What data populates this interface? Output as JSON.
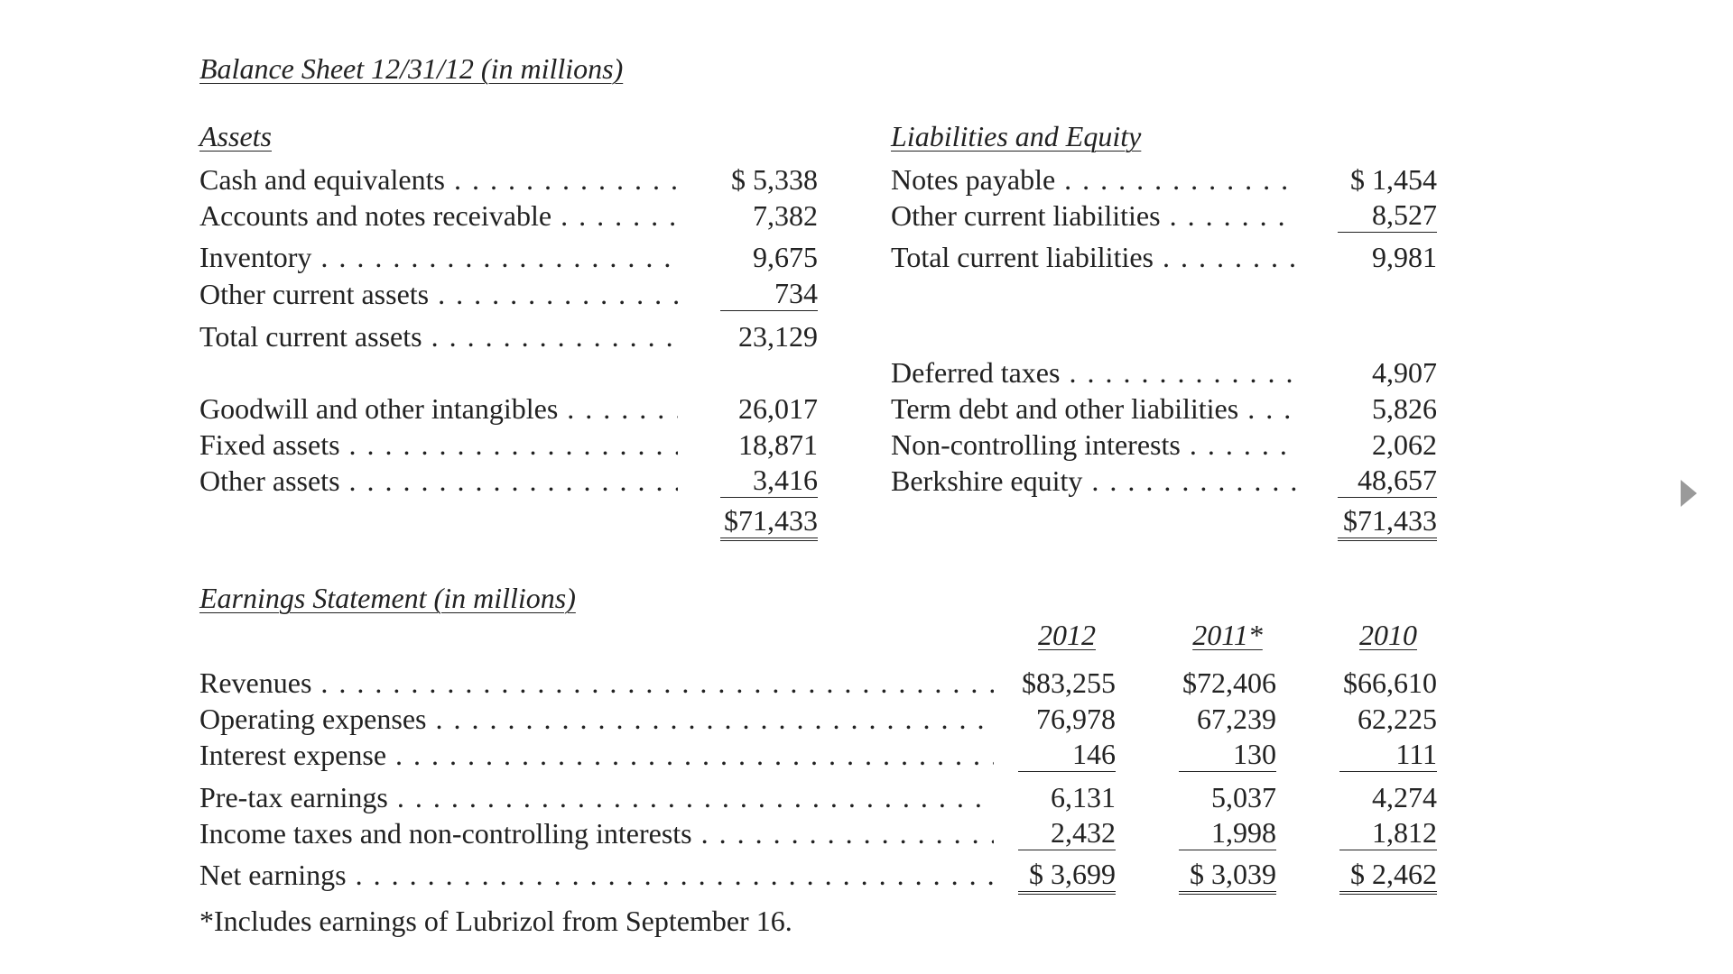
{
  "balance_sheet": {
    "title": "Balance Sheet 12/31/12 (in millions)",
    "assets_heading": "Assets",
    "assets": [
      {
        "label": "Cash and equivalents",
        "value": "$ 5,338"
      },
      {
        "label": "Accounts and notes receivable",
        "value": "7,382"
      },
      {
        "label": "Inventory",
        "value": "9,675"
      },
      {
        "label": "Other current assets",
        "value": "734"
      },
      {
        "label": "Total current assets",
        "value": "23,129"
      },
      {
        "label": "Goodwill and other intangibles",
        "value": "26,017"
      },
      {
        "label": "Fixed assets",
        "value": "18,871"
      },
      {
        "label": "Other assets",
        "value": "3,416"
      }
    ],
    "assets_total": "$71,433",
    "liabilities_heading": "Liabilities and Equity",
    "liabilities": [
      {
        "label": "Notes payable",
        "value": "$ 1,454"
      },
      {
        "label": "Other current liabilities",
        "value": "8,527"
      },
      {
        "label": "Total current liabilities",
        "value": "9,981"
      },
      {
        "label": "Deferred taxes",
        "value": "4,907"
      },
      {
        "label": "Term debt and other liabilities",
        "value": "5,826"
      },
      {
        "label": "Non-controlling interests",
        "value": "2,062"
      },
      {
        "label": "Berkshire equity",
        "value": "48,657"
      }
    ],
    "liabilities_total": "$71,433"
  },
  "earnings_statement": {
    "title": "Earnings Statement (in millions)",
    "years": [
      "2012",
      "2011*",
      "2010"
    ],
    "rows": [
      {
        "label": "Revenues",
        "values": [
          "$83,255",
          "$72,406",
          "$66,610"
        ]
      },
      {
        "label": "Operating expenses",
        "values": [
          "76,978",
          "67,239",
          "62,225"
        ]
      },
      {
        "label": "Interest expense",
        "values": [
          "146",
          "130",
          "111"
        ]
      },
      {
        "label": "Pre-tax earnings",
        "values": [
          "6,131",
          "5,037",
          "4,274"
        ]
      },
      {
        "label": "Income taxes and non-controlling interests",
        "values": [
          "2,432",
          "1,998",
          "1,812"
        ]
      },
      {
        "label": "Net earnings",
        "values": [
          "$ 3,699",
          "$ 3,039",
          "$ 2,462"
        ]
      }
    ],
    "footnote": "*Includes earnings of Lubrizol from September 16."
  },
  "navigation": {
    "next_icon": "triangle-right-icon",
    "arrow_color": "#9a9a9a"
  }
}
